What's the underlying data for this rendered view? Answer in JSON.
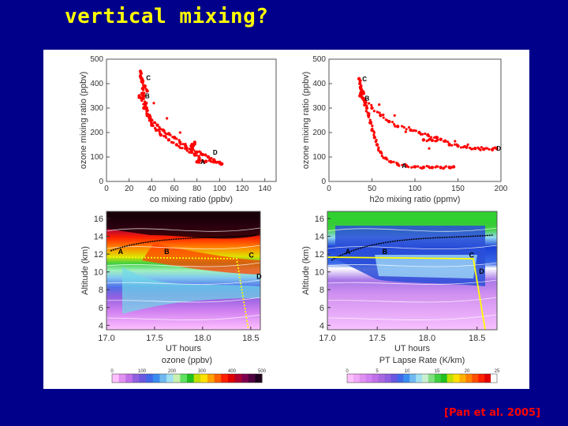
{
  "slide": {
    "title": "vertical mixing?",
    "citation": "[Pan et al. 2005]"
  },
  "chart_data": [
    {
      "type": "scatter",
      "panel": "top-left",
      "xlabel": "co mixing ratio (ppbv)",
      "ylabel": "ozone mixing ratio (ppbv)",
      "xlim": [
        0,
        150
      ],
      "ylim": [
        0,
        500
      ],
      "xticks": [
        0,
        20,
        40,
        60,
        80,
        100,
        120,
        140
      ],
      "yticks": [
        0,
        100,
        200,
        300,
        400,
        500
      ],
      "color": "#ff0000",
      "points": [
        [
          30,
          450
        ],
        [
          30,
          430
        ],
        [
          31,
          420
        ],
        [
          32,
          410
        ],
        [
          34,
          390
        ],
        [
          36,
          370
        ],
        [
          29,
          350
        ],
        [
          31,
          340
        ],
        [
          33,
          300
        ],
        [
          36,
          270
        ],
        [
          40,
          250
        ],
        [
          45,
          230
        ],
        [
          50,
          210
        ],
        [
          55,
          195
        ],
        [
          60,
          180
        ],
        [
          65,
          160
        ],
        [
          70,
          145
        ],
        [
          75,
          130
        ],
        [
          80,
          120
        ],
        [
          85,
          110
        ],
        [
          90,
          100
        ],
        [
          95,
          88
        ],
        [
          100,
          78
        ],
        [
          102,
          72
        ],
        [
          95,
          80
        ],
        [
          88,
          82
        ],
        [
          82,
          84
        ],
        [
          80,
          80
        ],
        [
          82,
          95
        ],
        [
          78,
          110
        ],
        [
          75,
          120
        ],
        [
          70,
          135
        ],
        [
          62,
          150
        ],
        [
          55,
          170
        ],
        [
          48,
          190
        ],
        [
          44,
          210
        ],
        [
          40,
          230
        ],
        [
          38,
          260
        ],
        [
          36,
          290
        ],
        [
          35,
          320
        ],
        [
          33,
          350
        ],
        [
          32,
          380
        ],
        [
          75,
          145
        ],
        [
          78,
          160
        ],
        [
          76,
          140
        ]
      ],
      "labels": [
        {
          "text": "A",
          "x": 81,
          "y": 80
        },
        {
          "text": "B",
          "x": 32,
          "y": 350
        },
        {
          "text": "C",
          "x": 33,
          "y": 425
        },
        {
          "text": "D",
          "x": 92,
          "y": 120
        }
      ]
    },
    {
      "type": "scatter",
      "panel": "top-right",
      "xlabel": "h2o mixing ratio (ppmv)",
      "ylabel": "ozone mixing ratio (ppbv)",
      "xlim": [
        0,
        200
      ],
      "ylim": [
        0,
        500
      ],
      "xticks": [
        0,
        50,
        100,
        150,
        200
      ],
      "yticks": [
        0,
        100,
        200,
        300,
        400,
        500
      ],
      "color": "#ff0000",
      "points": [
        [
          35,
          420
        ],
        [
          36,
          400
        ],
        [
          37,
          380
        ],
        [
          38,
          360
        ],
        [
          40,
          340
        ],
        [
          42,
          320
        ],
        [
          44,
          300
        ],
        [
          46,
          270
        ],
        [
          48,
          240
        ],
        [
          50,
          210
        ],
        [
          53,
          180
        ],
        [
          56,
          150
        ],
        [
          60,
          120
        ],
        [
          66,
          95
        ],
        [
          72,
          80
        ],
        [
          80,
          70
        ],
        [
          90,
          64
        ],
        [
          100,
          60
        ],
        [
          110,
          58
        ],
        [
          120,
          57
        ],
        [
          130,
          57
        ],
        [
          140,
          58
        ],
        [
          145,
          60
        ],
        [
          36,
          350
        ],
        [
          42,
          330
        ],
        [
          50,
          300
        ],
        [
          60,
          270
        ],
        [
          70,
          245
        ],
        [
          80,
          225
        ],
        [
          95,
          210
        ],
        [
          105,
          200
        ],
        [
          115,
          190
        ],
        [
          125,
          180
        ],
        [
          135,
          165
        ],
        [
          140,
          150
        ],
        [
          150,
          145
        ],
        [
          160,
          140
        ],
        [
          170,
          135
        ],
        [
          180,
          132
        ],
        [
          190,
          130
        ],
        [
          195,
          135
        ],
        [
          130,
          172
        ],
        [
          120,
          168
        ],
        [
          110,
          170
        ],
        [
          40,
          360
        ],
        [
          38,
          370
        ]
      ],
      "labels": [
        {
          "text": "A",
          "x": 82,
          "y": 65
        },
        {
          "text": "B",
          "x": 39,
          "y": 340
        },
        {
          "text": "C",
          "x": 36,
          "y": 420
        },
        {
          "text": "D",
          "x": 192,
          "y": 135
        }
      ]
    },
    {
      "type": "heatmap",
      "panel": "bottom-left",
      "xlabel": "UT hours",
      "ylabel": "Altitude (km)",
      "xlim": [
        17.0,
        18.6
      ],
      "ylim": [
        3.5,
        16.8
      ],
      "xticks": [
        "17.0",
        "17.5",
        "18.0",
        "18.5"
      ],
      "yticks": [
        4,
        6,
        8,
        10,
        12,
        14,
        16
      ],
      "colorbar": {
        "label": "ozone (ppbv)",
        "min": 0,
        "max": 500,
        "ticks": [
          0,
          100,
          200,
          300,
          400,
          500
        ],
        "colors": [
          "#ffc0ff",
          "#e090f0",
          "#c070e8",
          "#9060e0",
          "#6a58e0",
          "#4068e8",
          "#3b8cf0",
          "#70b8f0",
          "#a0e0f0",
          "#c8f0b0",
          "#60e060",
          "#20c020",
          "#c0e000",
          "#ffe000",
          "#ffa000",
          "#ff6000",
          "#ff2000",
          "#e00000",
          "#b00030",
          "#800050",
          "#500040",
          "#200020"
        ]
      },
      "labels": [
        {
          "text": "A",
          "x": 17.12,
          "y": 12.0
        },
        {
          "text": "B",
          "x": 17.6,
          "y": 12.0
        },
        {
          "text": "C",
          "x": 18.48,
          "y": 11.6
        },
        {
          "text": "D",
          "x": 18.56,
          "y": 9.2
        }
      ]
    },
    {
      "type": "heatmap",
      "panel": "bottom-right",
      "xlabel": "UT hours",
      "ylabel": "Altitude (km)",
      "xlim": [
        17.0,
        18.7
      ],
      "ylim": [
        3.5,
        16.8
      ],
      "xticks": [
        "17.0",
        "17.5",
        "18.0",
        "18.5"
      ],
      "yticks": [
        4,
        6,
        8,
        10,
        12,
        14,
        16
      ],
      "colorbar": {
        "label": "PT Lapse Rate (K/km)",
        "min": 0,
        "max": 25,
        "ticks": [
          0,
          5,
          10,
          15,
          20,
          25
        ],
        "colors": [
          "#ffc0ff",
          "#f0a8f8",
          "#e090f0",
          "#d080f0",
          "#c070e8",
          "#a868e0",
          "#9060e0",
          "#6a58e0",
          "#4068e8",
          "#3b8cf0",
          "#70b8f0",
          "#a0e0f0",
          "#c8f0d0",
          "#80e080",
          "#40d040",
          "#20c020",
          "#c0e000",
          "#ffe000",
          "#ffb000",
          "#ff8000",
          "#ff5000",
          "#ff2000",
          "#e00000",
          "#ffffff"
        ]
      },
      "labels": [
        {
          "text": "A",
          "x": 17.18,
          "y": 12.0
        },
        {
          "text": "B",
          "x": 17.55,
          "y": 12.0
        },
        {
          "text": "C",
          "x": 18.42,
          "y": 11.6
        },
        {
          "text": "D",
          "x": 18.52,
          "y": 9.8
        }
      ]
    }
  ]
}
